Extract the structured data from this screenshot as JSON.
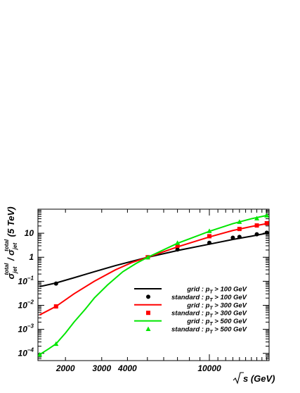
{
  "chart_data": {
    "type": "line",
    "xlabel": "√s (GeV)",
    "ylabel": "σ_jet^total / σ_jet^total (5 TeV)",
    "xscale": "log",
    "yscale": "log",
    "xlim": [
      1470,
      19500
    ],
    "ylim": [
      5e-05,
      100
    ],
    "x_ticks": [
      {
        "value": 2000,
        "label": "2000"
      },
      {
        "value": 3000,
        "label": "3000"
      },
      {
        "value": 4000,
        "label": "4000"
      },
      {
        "value": 10000,
        "label": "10000"
      }
    ],
    "y_ticks": [
      {
        "value": 10,
        "label": "10"
      },
      {
        "value": 1,
        "label": "1"
      },
      {
        "value": 0.1,
        "label": "10^-1"
      },
      {
        "value": 0.01,
        "label": "10^-2"
      },
      {
        "value": 0.001,
        "label": "10^-3"
      },
      {
        "value": 0.0001,
        "label": "10^-4"
      }
    ],
    "grid": false,
    "legend_position": "bottom-right",
    "series": [
      {
        "name": "grid : p_T > 100 GeV",
        "kind": "line",
        "color": "#000000",
        "x": [
          1500,
          1800,
          2200,
          2760,
          3500,
          5020,
          7000,
          10000,
          13000,
          16000,
          19000
        ],
        "y": [
          0.06,
          0.085,
          0.14,
          0.25,
          0.45,
          1.0,
          1.9,
          3.5,
          5.5,
          7.5,
          10.0
        ]
      },
      {
        "name": "standard : p_T > 100 GeV",
        "kind": "markers",
        "marker": "circle",
        "color": "#000000",
        "x": [
          1800,
          5020,
          7000,
          10000,
          13000,
          14000,
          17000,
          19000
        ],
        "y": [
          0.08,
          1.0,
          2.1,
          4.0,
          6.5,
          7.0,
          9.0,
          10.5
        ]
      },
      {
        "name": "grid : p_T > 300 GeV",
        "kind": "line",
        "color": "#ff0000",
        "x": [
          1500,
          1800,
          2200,
          2760,
          3500,
          4200,
          5020,
          7000,
          10000,
          13000,
          16000,
          19000
        ],
        "y": [
          0.004,
          0.009,
          0.03,
          0.1,
          0.3,
          0.6,
          1.0,
          2.7,
          7.0,
          13.0,
          19.0,
          25.0
        ]
      },
      {
        "name": "standard : p_T > 300 GeV",
        "kind": "markers",
        "marker": "square",
        "color": "#ff0000",
        "x": [
          1800,
          5020,
          7000,
          10000,
          14000,
          17000,
          19000
        ],
        "y": [
          0.009,
          1.0,
          3.0,
          7.5,
          15.0,
          21.0,
          26.0
        ]
      },
      {
        "name": "grid : p_T > 500 GeV",
        "kind": "line",
        "color": "#00e600",
        "x": [
          1500,
          1650,
          1800,
          2000,
          2200,
          2500,
          2760,
          3200,
          3800,
          4400,
          5020,
          7000,
          10000,
          13000,
          16000,
          19000
        ],
        "y": [
          9e-05,
          0.00015,
          0.00025,
          0.0007,
          0.002,
          0.007,
          0.02,
          0.07,
          0.25,
          0.55,
          1.0,
          3.8,
          12.0,
          25.0,
          40.0,
          55.0
        ]
      },
      {
        "name": "standard : p_T > 500 GeV",
        "kind": "markers",
        "marker": "triangle",
        "color": "#00e600",
        "x": [
          1500,
          1800,
          5020,
          7000,
          10000,
          14000,
          17000,
          19000
        ],
        "y": [
          9e-05,
          0.00025,
          1.0,
          4.0,
          12.5,
          30.0,
          42.0,
          55.0
        ]
      }
    ]
  }
}
